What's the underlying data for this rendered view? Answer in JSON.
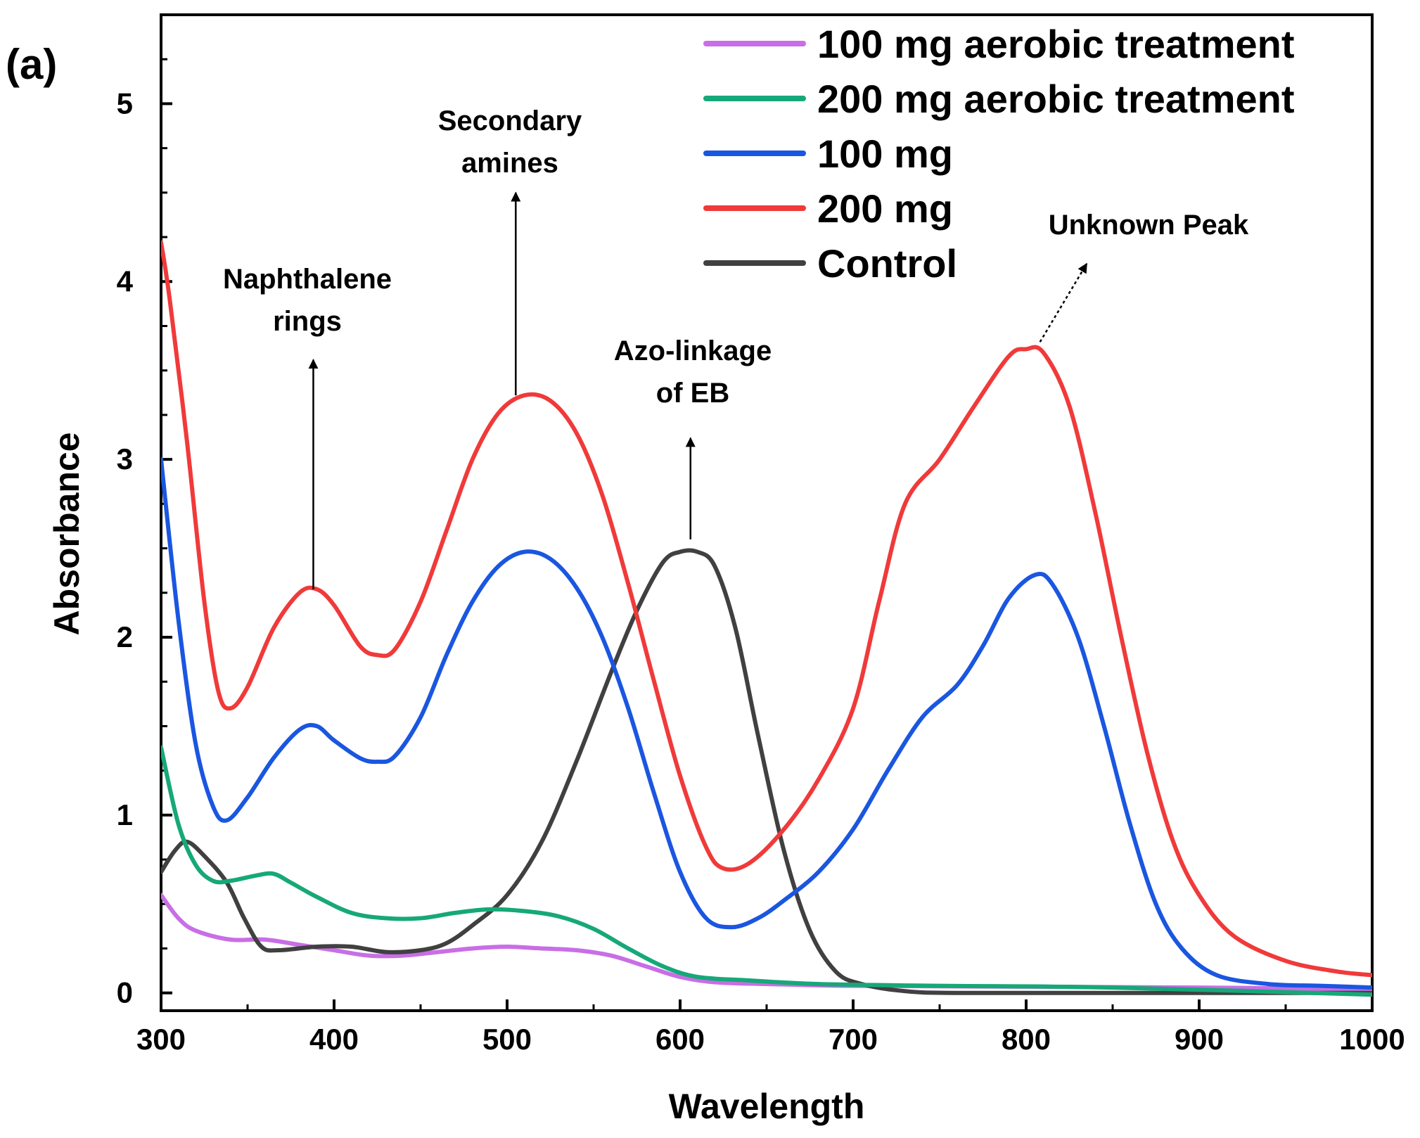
{
  "panel_label": "(a)",
  "chart_data": {
    "type": "line",
    "xlabel": "Wavelength",
    "ylabel": "Absorbance",
    "xlim": [
      300,
      1000
    ],
    "ylim": [
      -0.1,
      5.5
    ],
    "xticks": [
      300,
      400,
      500,
      600,
      700,
      800,
      900,
      1000
    ],
    "yticks": [
      0,
      1,
      2,
      3,
      4,
      5
    ],
    "grid": false,
    "legend_position": "top-right",
    "series": [
      {
        "name": "100 mg aerobic treatment",
        "color": "#c86ee6",
        "points": [
          [
            300,
            0.55
          ],
          [
            310,
            0.42
          ],
          [
            320,
            0.35
          ],
          [
            340,
            0.3
          ],
          [
            360,
            0.3
          ],
          [
            380,
            0.27
          ],
          [
            400,
            0.24
          ],
          [
            420,
            0.21
          ],
          [
            440,
            0.21
          ],
          [
            460,
            0.23
          ],
          [
            480,
            0.25
          ],
          [
            500,
            0.26
          ],
          [
            520,
            0.25
          ],
          [
            540,
            0.24
          ],
          [
            560,
            0.21
          ],
          [
            580,
            0.15
          ],
          [
            600,
            0.09
          ],
          [
            620,
            0.06
          ],
          [
            650,
            0.05
          ],
          [
            700,
            0.04
          ],
          [
            800,
            0.035
          ],
          [
            900,
            0.03
          ],
          [
            1000,
            0.02
          ]
        ]
      },
      {
        "name": "200 mg aerobic treatment",
        "color": "#16a878",
        "points": [
          [
            300,
            1.38
          ],
          [
            310,
            0.95
          ],
          [
            320,
            0.72
          ],
          [
            330,
            0.63
          ],
          [
            340,
            0.63
          ],
          [
            355,
            0.66
          ],
          [
            365,
            0.67
          ],
          [
            375,
            0.62
          ],
          [
            390,
            0.54
          ],
          [
            410,
            0.45
          ],
          [
            430,
            0.42
          ],
          [
            450,
            0.42
          ],
          [
            470,
            0.45
          ],
          [
            490,
            0.47
          ],
          [
            510,
            0.46
          ],
          [
            530,
            0.43
          ],
          [
            550,
            0.36
          ],
          [
            570,
            0.25
          ],
          [
            590,
            0.15
          ],
          [
            610,
            0.09
          ],
          [
            640,
            0.07
          ],
          [
            680,
            0.05
          ],
          [
            750,
            0.04
          ],
          [
            850,
            0.03
          ],
          [
            1000,
            -0.01
          ]
        ]
      },
      {
        "name": "100 mg",
        "color": "#1a56e0",
        "points": [
          [
            300,
            3.0
          ],
          [
            310,
            2.1
          ],
          [
            320,
            1.4
          ],
          [
            330,
            1.05
          ],
          [
            338,
            0.97
          ],
          [
            350,
            1.1
          ],
          [
            365,
            1.32
          ],
          [
            380,
            1.48
          ],
          [
            390,
            1.5
          ],
          [
            400,
            1.42
          ],
          [
            415,
            1.32
          ],
          [
            425,
            1.3
          ],
          [
            435,
            1.33
          ],
          [
            450,
            1.55
          ],
          [
            465,
            1.9
          ],
          [
            480,
            2.2
          ],
          [
            495,
            2.4
          ],
          [
            510,
            2.48
          ],
          [
            525,
            2.44
          ],
          [
            540,
            2.28
          ],
          [
            555,
            2.0
          ],
          [
            570,
            1.6
          ],
          [
            585,
            1.12
          ],
          [
            600,
            0.68
          ],
          [
            615,
            0.42
          ],
          [
            630,
            0.37
          ],
          [
            645,
            0.42
          ],
          [
            660,
            0.52
          ],
          [
            680,
            0.68
          ],
          [
            700,
            0.92
          ],
          [
            720,
            1.25
          ],
          [
            740,
            1.55
          ],
          [
            760,
            1.73
          ],
          [
            775,
            1.95
          ],
          [
            790,
            2.22
          ],
          [
            805,
            2.35
          ],
          [
            815,
            2.3
          ],
          [
            830,
            2.0
          ],
          [
            845,
            1.5
          ],
          [
            860,
            0.95
          ],
          [
            875,
            0.5
          ],
          [
            890,
            0.25
          ],
          [
            910,
            0.1
          ],
          [
            940,
            0.05
          ],
          [
            970,
            0.04
          ],
          [
            1000,
            0.03
          ]
        ]
      },
      {
        "name": "200 mg",
        "color": "#f03a3a",
        "points": [
          [
            300,
            4.22
          ],
          [
            305,
            3.9
          ],
          [
            315,
            3.1
          ],
          [
            325,
            2.2
          ],
          [
            333,
            1.7
          ],
          [
            340,
            1.6
          ],
          [
            350,
            1.72
          ],
          [
            365,
            2.05
          ],
          [
            380,
            2.25
          ],
          [
            390,
            2.27
          ],
          [
            400,
            2.18
          ],
          [
            415,
            1.95
          ],
          [
            425,
            1.9
          ],
          [
            435,
            1.93
          ],
          [
            450,
            2.2
          ],
          [
            465,
            2.6
          ],
          [
            480,
            3.0
          ],
          [
            495,
            3.26
          ],
          [
            510,
            3.36
          ],
          [
            525,
            3.33
          ],
          [
            540,
            3.15
          ],
          [
            555,
            2.8
          ],
          [
            570,
            2.3
          ],
          [
            585,
            1.75
          ],
          [
            600,
            1.22
          ],
          [
            615,
            0.82
          ],
          [
            625,
            0.7
          ],
          [
            640,
            0.73
          ],
          [
            660,
            0.92
          ],
          [
            680,
            1.2
          ],
          [
            700,
            1.6
          ],
          [
            715,
            2.2
          ],
          [
            730,
            2.75
          ],
          [
            750,
            3.0
          ],
          [
            770,
            3.3
          ],
          [
            790,
            3.58
          ],
          [
            800,
            3.62
          ],
          [
            810,
            3.6
          ],
          [
            825,
            3.3
          ],
          [
            840,
            2.7
          ],
          [
            855,
            2.0
          ],
          [
            870,
            1.35
          ],
          [
            885,
            0.85
          ],
          [
            900,
            0.55
          ],
          [
            920,
            0.32
          ],
          [
            950,
            0.18
          ],
          [
            980,
            0.12
          ],
          [
            1000,
            0.1
          ]
        ]
      },
      {
        "name": "Control",
        "color": "#404040",
        "points": [
          [
            300,
            0.68
          ],
          [
            308,
            0.8
          ],
          [
            315,
            0.85
          ],
          [
            325,
            0.77
          ],
          [
            338,
            0.62
          ],
          [
            348,
            0.42
          ],
          [
            358,
            0.26
          ],
          [
            368,
            0.24
          ],
          [
            390,
            0.26
          ],
          [
            410,
            0.26
          ],
          [
            430,
            0.23
          ],
          [
            450,
            0.24
          ],
          [
            465,
            0.28
          ],
          [
            480,
            0.38
          ],
          [
            500,
            0.55
          ],
          [
            520,
            0.85
          ],
          [
            540,
            1.3
          ],
          [
            560,
            1.8
          ],
          [
            575,
            2.15
          ],
          [
            590,
            2.42
          ],
          [
            600,
            2.48
          ],
          [
            610,
            2.48
          ],
          [
            620,
            2.4
          ],
          [
            632,
            2.05
          ],
          [
            645,
            1.45
          ],
          [
            660,
            0.8
          ],
          [
            675,
            0.35
          ],
          [
            690,
            0.12
          ],
          [
            705,
            0.05
          ],
          [
            730,
            0.01
          ],
          [
            760,
            0.0
          ],
          [
            850,
            0.0
          ],
          [
            1000,
            0.0
          ]
        ]
      }
    ],
    "annotations": [
      {
        "lines": [
          "Naphthalene",
          "rings"
        ],
        "arrow_from": [
          388,
          2.27
        ],
        "arrow_to": [
          388,
          3.56
        ]
      },
      {
        "lines": [
          "Secondary",
          "amines"
        ],
        "arrow_from": [
          505,
          3.36
        ],
        "arrow_to": [
          505,
          4.5
        ]
      },
      {
        "lines": [
          "Azo-linkage",
          "of EB"
        ],
        "arrow_from": [
          606,
          2.55
        ],
        "arrow_to": [
          606,
          3.12
        ]
      },
      {
        "lines": [
          "Unknown Peak"
        ],
        "arrow_from": [
          808,
          3.66
        ],
        "arrow_to": [
          835,
          4.1
        ],
        "dashed": true
      }
    ]
  }
}
